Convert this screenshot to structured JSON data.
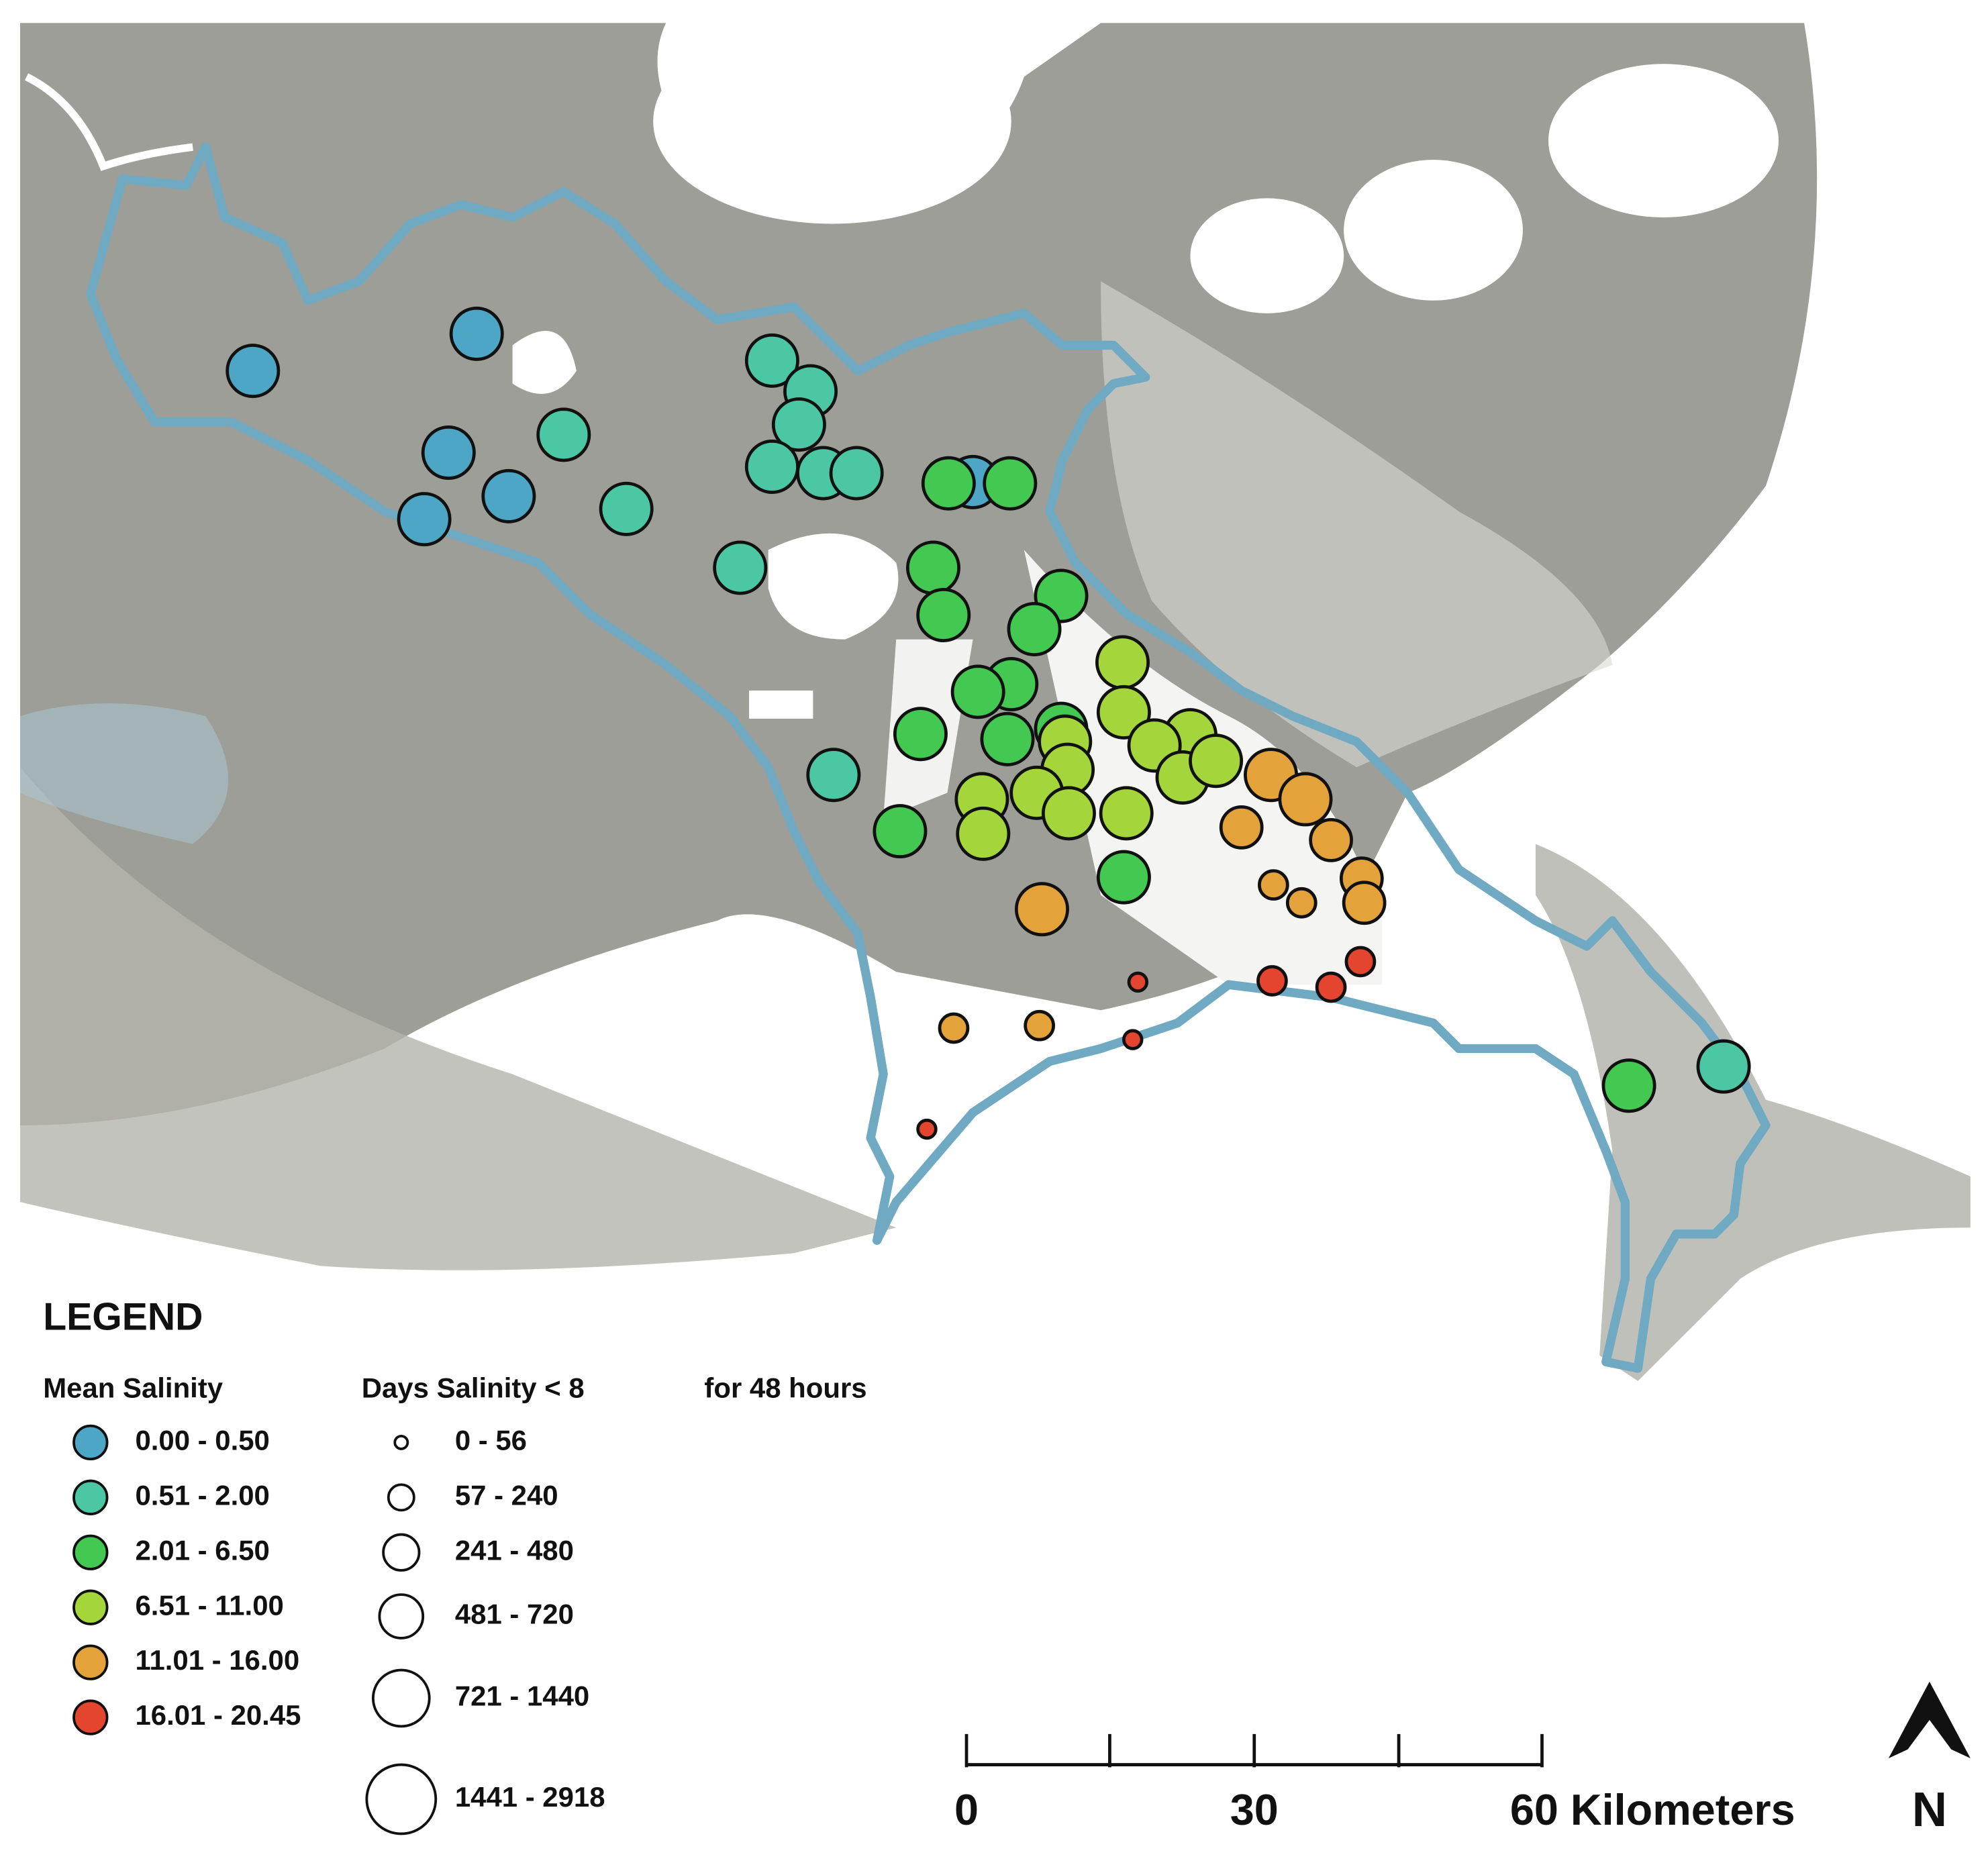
{
  "legend": {
    "title": "LEGEND",
    "salinity_title": "Mean Salinity",
    "salinity_classes": [
      {
        "label": "0.00 - 0.50",
        "color": "#4ea6c6"
      },
      {
        "label": "0.51 - 2.00",
        "color": "#4cc7a4"
      },
      {
        "label": "2.01 - 6.50",
        "color": "#43c852"
      },
      {
        "label": "6.51 - 11.00",
        "color": "#a4d63c"
      },
      {
        "label": "11.01 - 16.00",
        "color": "#e4a23a"
      },
      {
        "label": "16.01 - 20.45",
        "color": "#e4452e"
      }
    ],
    "days_title": "Days Salinity < 8",
    "days_title_suffix": "for 48 hours",
    "days_classes": [
      "0 - 56",
      "57 - 240",
      "241 - 480",
      "481 - 720",
      "721 - 1440",
      "1441 - 2918"
    ]
  },
  "scale_bar": {
    "labels": [
      "0",
      "30",
      "60 Kilometers"
    ]
  },
  "north_arrow": {
    "label": "N"
  }
}
